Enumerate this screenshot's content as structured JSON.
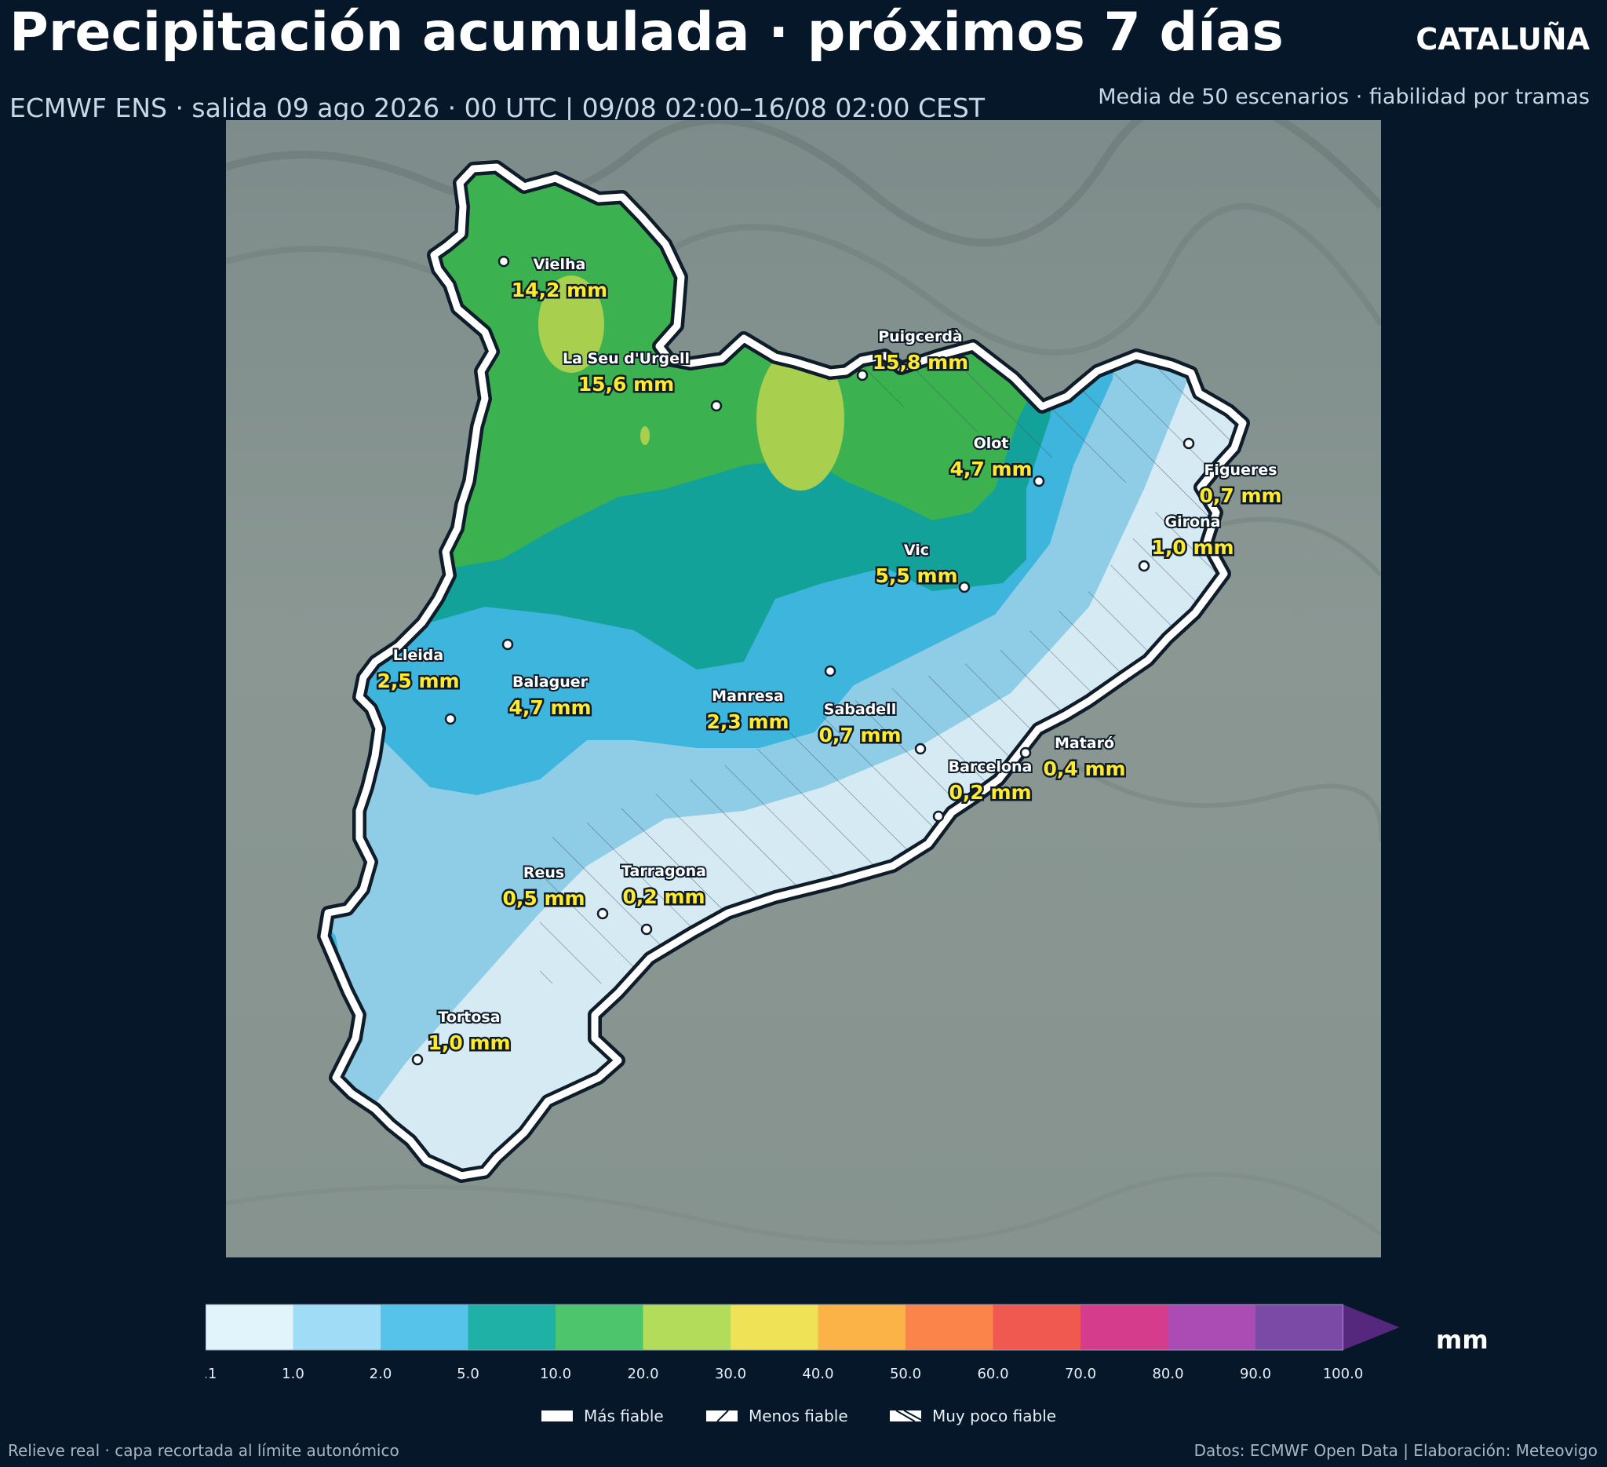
{
  "header": {
    "title": "Precipitación acumulada · próximos 7 días",
    "region": "CATALUÑA",
    "subtitle": "ECMWF ENS · salida 09 ago 2026 · 00 UTC  |  09/08 02:00–16/08 02:00 CEST",
    "subtitle_right": "Media de 50 escenarios · fiabilidad por tramas"
  },
  "cities": [
    {
      "name": "Vielha",
      "value": "14,2 mm"
    },
    {
      "name": "Puigcerdà",
      "value": "15,8 mm"
    },
    {
      "name": "La Seu d'Urgell",
      "value": "15,6 mm"
    },
    {
      "name": "Olot",
      "value": "4,7 mm"
    },
    {
      "name": "Figueres",
      "value": "0,7 mm"
    },
    {
      "name": "Girona",
      "value": "1,0 mm"
    },
    {
      "name": "Vic",
      "value": "5,5 mm"
    },
    {
      "name": "Lleida",
      "value": "2,5 mm"
    },
    {
      "name": "Balaguer",
      "value": "4,7 mm"
    },
    {
      "name": "Manresa",
      "value": "2,3 mm"
    },
    {
      "name": "Sabadell",
      "value": "0,7 mm"
    },
    {
      "name": "Mataró",
      "value": "0,4 mm"
    },
    {
      "name": "Barcelona",
      "value": "0,2 mm"
    },
    {
      "name": "Reus",
      "value": "0,5 mm"
    },
    {
      "name": "Tarragona",
      "value": "0,2 mm"
    },
    {
      "name": "Tortosa",
      "value": "1,0 mm"
    }
  ],
  "colorbar": {
    "unit": "mm",
    "ticks": [
      "0.1",
      "1.0",
      "2.0",
      "5.0",
      "10.0",
      "20.0",
      "30.0",
      "40.0",
      "50.0",
      "60.0",
      "70.0",
      "80.0",
      "90.0",
      "100.0"
    ],
    "colors": [
      "#e1f4fc",
      "#a0dcf6",
      "#55c3ea",
      "#1fb0a6",
      "#4dc56c",
      "#b3dc5b",
      "#f0e256",
      "#fbb347",
      "#fb844a",
      "#f0594f",
      "#d63c8c",
      "#aa4cb4",
      "#7a4aa6"
    ],
    "extend_color": "#55287e"
  },
  "reliability_legend": [
    {
      "label": "Más fiable",
      "pattern": "solid"
    },
    {
      "label": "Menos fiable",
      "pattern": "hatch"
    },
    {
      "label": "Muy poco fiable",
      "pattern": "cross-hatch"
    }
  ],
  "footer": {
    "left": "Relieve real · capa recortada al límite autonómico",
    "right": "Datos: ECMWF Open Data | Elaboración: Meteovigo"
  }
}
